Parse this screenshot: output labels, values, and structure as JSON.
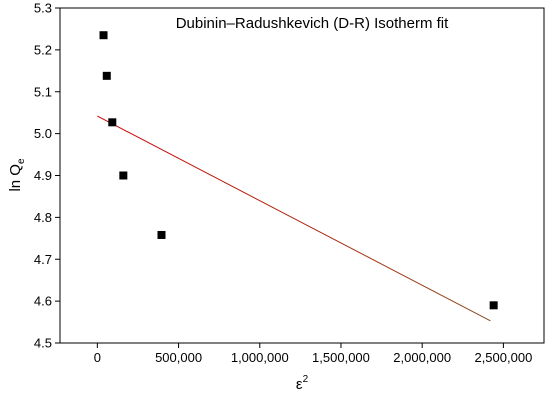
{
  "chart_data": {
    "type": "scatter",
    "title": "Dubinin–Radushkevich (D-R) Isotherm fit",
    "xlabel": {
      "base": "ε",
      "sup": "2"
    },
    "ylabel": {
      "base": "ln Q",
      "sub": "e"
    },
    "xlim": [
      -230000,
      2750000
    ],
    "ylim": [
      4.5,
      5.3
    ],
    "x_ticks": [
      0,
      500000,
      1000000,
      1500000,
      2000000,
      2500000
    ],
    "x_tick_labels": [
      "0",
      "500,000",
      "1,000,000",
      "1,500,000",
      "2,000,000",
      "2,500,000"
    ],
    "y_ticks": [
      4.5,
      4.6,
      4.7,
      4.8,
      4.9,
      5.0,
      5.1,
      5.2,
      5.3
    ],
    "y_tick_labels": [
      "4.5",
      "4.6",
      "4.7",
      "4.8",
      "4.9",
      "5.0",
      "5.1",
      "5.2",
      "5.3"
    ],
    "grid": false,
    "series": [
      {
        "kind": "points",
        "marker": "square",
        "color": "#000000",
        "points": [
          {
            "x": 38000,
            "y": 5.235
          },
          {
            "x": 58000,
            "y": 5.138
          },
          {
            "x": 92000,
            "y": 5.027
          },
          {
            "x": 160000,
            "y": 4.9
          },
          {
            "x": 395000,
            "y": 4.758
          },
          {
            "x": 2440000,
            "y": 4.59
          }
        ]
      },
      {
        "kind": "fit_line",
        "color": "#d00000",
        "color_end": "#8b4a1a",
        "from": {
          "x": 0,
          "y": 5.042
        },
        "to": {
          "x": 2420000,
          "y": 4.553
        }
      }
    ]
  }
}
